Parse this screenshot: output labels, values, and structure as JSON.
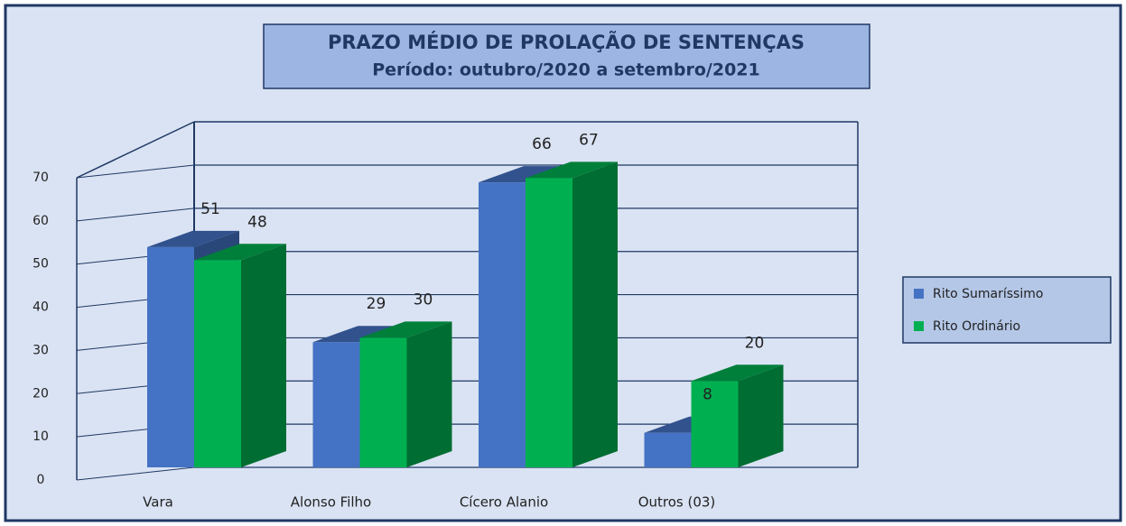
{
  "chart_data": {
    "type": "bar3d",
    "title": "PRAZO MÉDIO DE PROLAÇÃO DE SENTENÇAS",
    "subtitle": "Período: outubro/2020 a setembro/2021",
    "categories": [
      "Vara",
      "Alonso Filho",
      "Cícero Alanio",
      "Outros (03)"
    ],
    "series": [
      {
        "name": "Rito Sumaríssimo",
        "color": "#4472c4",
        "values": [
          51,
          29,
          66,
          8
        ]
      },
      {
        "name": "Rito Ordinário",
        "color": "#00b050",
        "values": [
          48,
          30,
          67,
          20
        ]
      }
    ],
    "ylim": [
      0,
      70
    ],
    "yticks": [
      0,
      10,
      20,
      30,
      40,
      50,
      60,
      70
    ],
    "grid": true,
    "legend": "right"
  }
}
